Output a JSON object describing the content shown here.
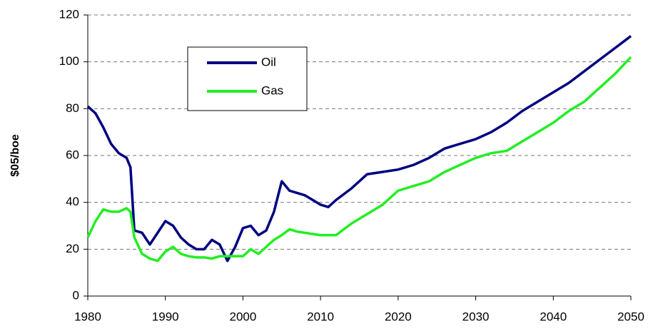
{
  "chart_data": {
    "type": "line",
    "y_label": "$05/boe",
    "x": [
      1980,
      1981,
      1982,
      1983,
      1984,
      1985,
      1985.5,
      1986,
      1987,
      1988,
      1989,
      1990,
      1991,
      1992,
      1993,
      1994,
      1995,
      1996,
      1997,
      1998,
      1999,
      2000,
      2001,
      2002,
      2003,
      2004,
      2005,
      2006,
      2007,
      2008,
      2009,
      2010,
      2011,
      2012,
      2014,
      2016,
      2018,
      2020,
      2022,
      2024,
      2026,
      2028,
      2030,
      2032,
      2034,
      2036,
      2038,
      2040,
      2042,
      2044,
      2046,
      2048,
      2050
    ],
    "series": [
      {
        "name": "Oil",
        "color": "#000080",
        "values": [
          81,
          78,
          72,
          65,
          61,
          59,
          55,
          28,
          27,
          22,
          27,
          32,
          30,
          25,
          22,
          20,
          20,
          24,
          22,
          15,
          21,
          29,
          30,
          26,
          28,
          36,
          49,
          45,
          44,
          43,
          41,
          39,
          38,
          41,
          46,
          52,
          53,
          54,
          56,
          59,
          63,
          65,
          67,
          70,
          74,
          79,
          83,
          87,
          91,
          96,
          101,
          106,
          111
        ]
      },
      {
        "name": "Gas",
        "color": "#22ee22",
        "values": [
          25,
          32,
          37,
          36,
          36,
          37.5,
          36,
          25,
          18,
          16,
          15,
          19,
          21,
          18,
          17,
          16.5,
          16.5,
          16,
          17,
          17,
          17,
          17,
          20,
          18,
          21,
          24,
          26,
          28.5,
          27.5,
          27,
          26.5,
          26,
          26,
          26,
          31,
          35,
          39,
          45,
          47,
          49,
          53,
          56,
          59,
          61,
          62,
          66,
          70,
          74,
          79,
          83,
          89,
          95,
          102
        ]
      }
    ],
    "xlim": [
      1980,
      2050
    ],
    "xticks": [
      1980,
      1990,
      2000,
      2010,
      2020,
      2030,
      2040,
      2050
    ],
    "ylim": [
      0,
      120
    ],
    "yticks": [
      0,
      20,
      40,
      60,
      80,
      100,
      120
    ],
    "grid": true,
    "legend": "upper-left"
  }
}
